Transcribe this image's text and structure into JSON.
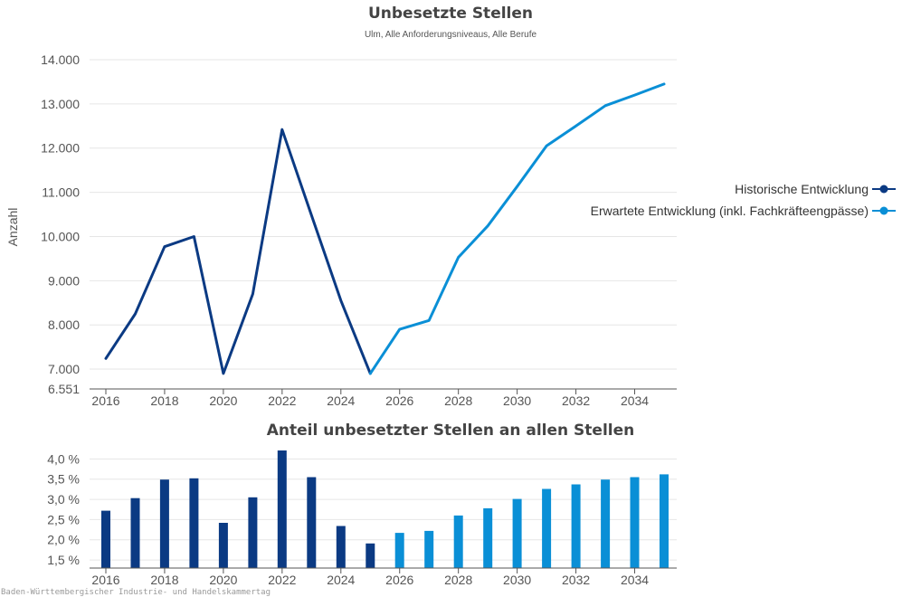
{
  "colors": {
    "historical": "#0b3a83",
    "expected": "#0a8fd6"
  },
  "chart_data": [
    {
      "type": "line",
      "title": "Unbesetzte Stellen",
      "subtitle": "Ulm, Alle Anforderungsniveaus, Alle Berufe",
      "ylabel": "Anzahl",
      "xlabel": "",
      "ylim": [
        6551,
        14000
      ],
      "yticks": [
        6551,
        7000,
        8000,
        9000,
        10000,
        11000,
        12000,
        13000,
        14000
      ],
      "ytick_labels": [
        "6.551",
        "7.000",
        "8.000",
        "9.000",
        "10.000",
        "11.000",
        "12.000",
        "13.000",
        "14.000"
      ],
      "xticks": [
        2016,
        2018,
        2020,
        2022,
        2024,
        2026,
        2028,
        2030,
        2032,
        2034
      ],
      "xticks_labels": [
        "2016",
        "2018",
        "2020",
        "2022",
        "2024",
        "2026",
        "2028",
        "2030",
        "2032",
        "2034"
      ],
      "grid": true,
      "legend_position": "right",
      "series": [
        {
          "name": "Historische Entwicklung",
          "x": [
            2016,
            2017,
            2018,
            2019,
            2020,
            2021,
            2022,
            2023,
            2024,
            2025
          ],
          "values": [
            7240,
            8250,
            9770,
            10000,
            6900,
            8700,
            12420,
            10480,
            8550,
            6900
          ]
        },
        {
          "name": "Erwartete Entwicklung (inkl. Fachkräfteengpässe)",
          "x": [
            2025,
            2026,
            2027,
            2028,
            2029,
            2030,
            2031,
            2032,
            2033,
            2034,
            2035
          ],
          "values": [
            6900,
            7900,
            8100,
            9530,
            10240,
            11130,
            12050,
            12500,
            12960,
            13200,
            13450
          ]
        }
      ]
    },
    {
      "type": "bar",
      "title": "Anteil unbesetzter Stellen an allen Stellen",
      "ylim": [
        1.3,
        4.3
      ],
      "yticks": [
        1.5,
        2.0,
        2.5,
        3.0,
        3.5,
        4.0
      ],
      "ytick_labels": [
        "1,5 %",
        "2,0 %",
        "2,5 %",
        "3,0 %",
        "3,5 %",
        "4,0 %"
      ],
      "xticks_labels": [
        "2016",
        "2018",
        "2020",
        "2022",
        "2024",
        "2026",
        "2028",
        "2030",
        "2032",
        "2034"
      ],
      "grid": true,
      "series": [
        {
          "name": "Historische Entwicklung",
          "x": [
            2016,
            2017,
            2018,
            2019,
            2020,
            2021,
            2022,
            2023,
            2024,
            2025
          ],
          "values": [
            2.72,
            3.03,
            3.49,
            3.52,
            2.42,
            3.05,
            4.21,
            3.55,
            2.34,
            1.91
          ]
        },
        {
          "name": "Erwartete Entwicklung (inkl. Fachkräfteengpässe)",
          "x": [
            2026,
            2027,
            2028,
            2029,
            2030,
            2031,
            2032,
            2033,
            2034,
            2035
          ],
          "values": [
            2.17,
            2.22,
            2.6,
            2.78,
            3.01,
            3.26,
            3.37,
            3.49,
            3.55,
            3.62
          ]
        }
      ]
    }
  ],
  "credit": "Baden-Württembergischer Industrie- und Handelskammertag"
}
